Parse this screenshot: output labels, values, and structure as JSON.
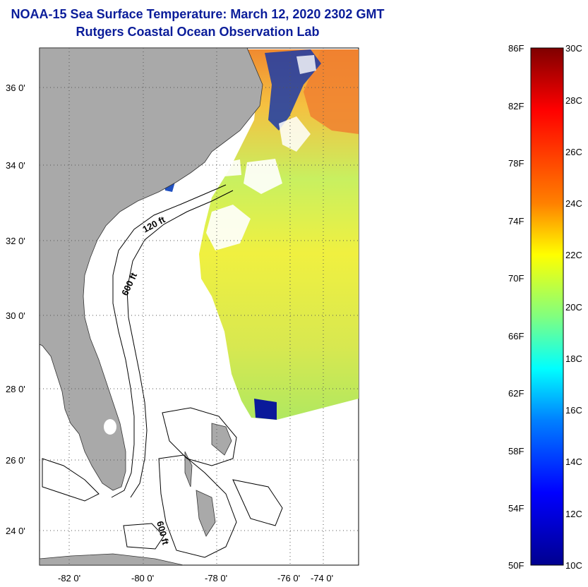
{
  "header": {
    "title": "NOAA-15 Sea Surface Temperature:  March 12, 2020 2302 GMT",
    "subtitle": "Rutgers Coastal Ocean Observation Lab"
  },
  "map": {
    "lat_ticks": [
      "36 0'",
      "34 0'",
      "32 0'",
      "30 0'",
      "28 0'",
      "26 0'",
      "24 0'"
    ],
    "lon_ticks": [
      "-82 0'",
      "-80 0'",
      "-78 0'",
      "-76 0'",
      "-74 0'"
    ],
    "contour_labels": [
      "120 ft",
      "600 ft",
      "600 ft"
    ]
  },
  "colorbar": {
    "f_labels": [
      "86F",
      "82F",
      "78F",
      "74F",
      "70F",
      "66F",
      "62F",
      "58F",
      "54F",
      "50F"
    ],
    "c_labels": [
      "30C",
      "28C",
      "26C",
      "24C",
      "22C",
      "20C",
      "18C",
      "16C",
      "14C",
      "12C",
      "10C"
    ],
    "colors": [
      "#7f0000",
      "#ff0000",
      "#ff8000",
      "#ffff00",
      "#80ff80",
      "#00ffff",
      "#0080ff",
      "#0000ff",
      "#00008f"
    ]
  }
}
